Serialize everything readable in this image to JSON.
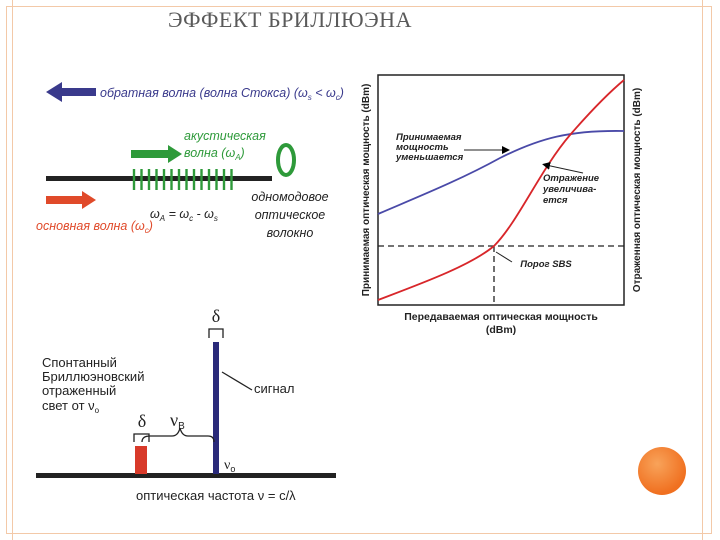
{
  "slide": {
    "title": "ЭФФЕКТ БРИЛЛЮЭНА",
    "accent_color": "#f07020"
  },
  "top_left_diagram": {
    "backward_wave": "обратная волна (волна Стокса) (ω",
    "backward_wave_s": "s",
    "backward_wave_mid": " < ω",
    "backward_wave_c": "c",
    "backward_wave_end": ")",
    "acoustic_line1": "акустическая",
    "acoustic_line2": "волна (ω",
    "acoustic_A": "A",
    "acoustic_end": ")",
    "forward_wave": "основная волна (ω",
    "forward_wave_c": "c",
    "forward_wave_end": ")",
    "relation_a": "ω",
    "relation_A": "A",
    "relation_b": " = ω",
    "relation_c_sub": "c",
    "relation_d": " - ω",
    "relation_s_sub": "s",
    "fiber_line1": "одномодовое",
    "fiber_line2": "оптическое",
    "fiber_line3": "волокно",
    "colors": {
      "backward": "#3a3a8c",
      "acoustic": "#2e9a3a",
      "forward": "#e04a2a"
    }
  },
  "spectrum_diagram": {
    "delta_top": "δ",
    "delta_left": "δ",
    "spontaneous_line1": "Спонтанный",
    "spontaneous_line2": "Бриллюэновский",
    "spontaneous_line3": "отраженный",
    "spontaneous_line4": "свет от ν",
    "spontaneous_sub": "o",
    "signal_label": "сигнал",
    "nu_b": "ν",
    "nu_b_sub": "B",
    "nu_o": "ν",
    "nu_o_sub": "o",
    "axis_label": "оптическая частота  ν = c/λ",
    "colors": {
      "signal": "#2a2a7a",
      "stokes": "#d83a2a"
    }
  },
  "power_chart": {
    "ylabel_left": "Принимаемая оптическая мощность (dBm)",
    "ylabel_right": "Отраженная оптическая мощность (dBm)",
    "xlabel_line1": "Передаваемая оптическая мощность",
    "xlabel_line2": "(dBm)",
    "received_line1": "Принимаемая",
    "received_line2": "мощность",
    "received_line3": "уменьшается",
    "reflected_line1": "Отражение",
    "reflected_line2": "увеличива-",
    "reflected_line3": "ется",
    "threshold_label": "Порог SBS",
    "colors": {
      "received": "#4a4aa8",
      "reflected": "#d8262a"
    }
  }
}
